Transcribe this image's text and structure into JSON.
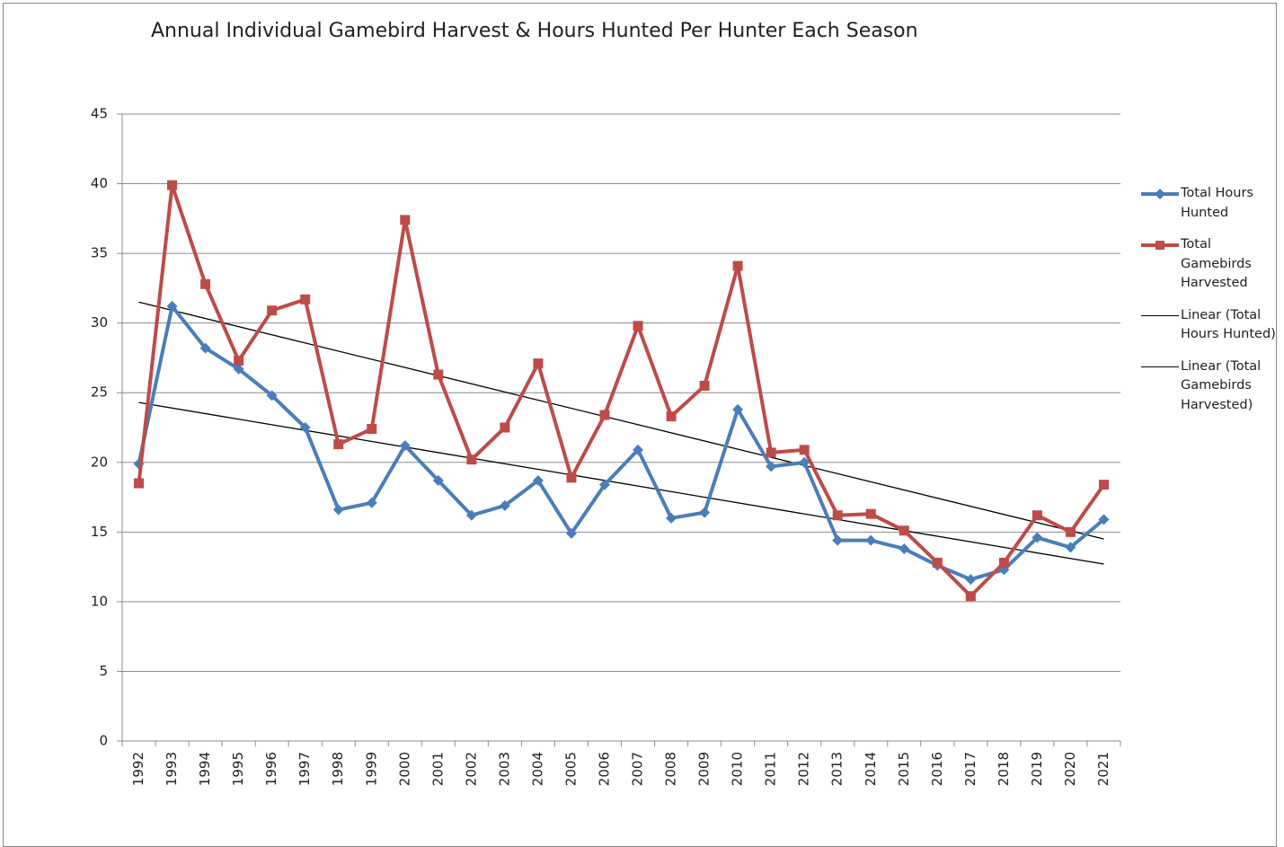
{
  "chart_data": {
    "type": "line",
    "title": "Annual Individual Gamebird Harvest & Hours Hunted Per Hunter Each Season",
    "categories": [
      "1992",
      "1993",
      "1994",
      "1995",
      "1996",
      "1997",
      "1998",
      "1999",
      "2000",
      "2001",
      "2002",
      "2003",
      "2004",
      "2005",
      "2006",
      "2007",
      "2008",
      "2009",
      "2010",
      "2011",
      "2012",
      "2013",
      "2014",
      "2015",
      "2016",
      "2017",
      "2018",
      "2019",
      "2020",
      "2021"
    ],
    "series": [
      {
        "name": "Total Hours Hunted",
        "color": "#4a7ebb",
        "marker": "diamond",
        "values": [
          19.9,
          31.2,
          28.2,
          26.7,
          24.8,
          22.5,
          16.6,
          17.1,
          21.2,
          18.7,
          16.2,
          16.9,
          18.7,
          14.9,
          18.4,
          20.9,
          16.0,
          16.4,
          23.8,
          19.7,
          20.0,
          14.4,
          14.4,
          13.8,
          12.6,
          11.6,
          12.3,
          14.6,
          13.9,
          15.9
        ]
      },
      {
        "name": "Total Gamebirds Harvested",
        "color": "#be4b48",
        "marker": "square",
        "values": [
          18.5,
          39.9,
          32.8,
          27.3,
          30.9,
          31.7,
          21.3,
          22.4,
          37.4,
          26.3,
          20.2,
          22.5,
          27.1,
          18.9,
          23.4,
          29.8,
          23.3,
          25.5,
          34.1,
          20.7,
          20.9,
          16.2,
          16.3,
          15.1,
          12.8,
          10.4,
          12.8,
          16.2,
          15.0,
          18.4
        ]
      }
    ],
    "trendlines": [
      {
        "name": "Linear (Total Hours Hunted)",
        "color": "#000000",
        "values": [
          24.3,
          12.7
        ]
      },
      {
        "name": "Linear (Total Gamebirds Harvested)",
        "color": "#000000",
        "values": [
          31.5,
          14.5
        ]
      }
    ],
    "ylim": [
      0,
      45
    ],
    "yticks": [
      0,
      5,
      10,
      15,
      20,
      25,
      30,
      35,
      40,
      45
    ],
    "grid": true
  }
}
